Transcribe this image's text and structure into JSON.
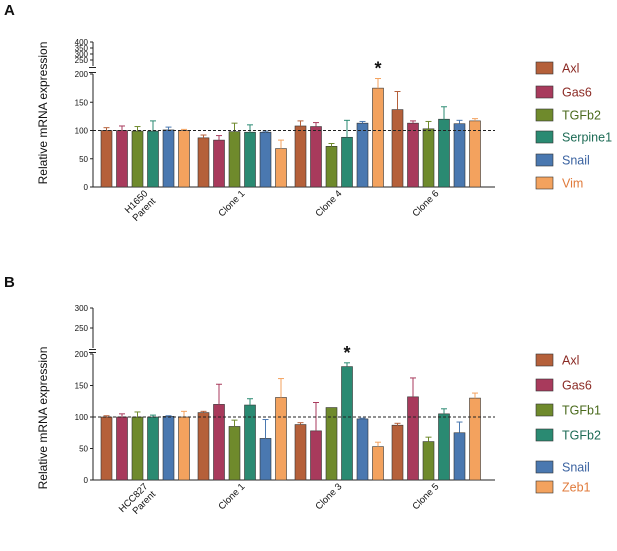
{
  "chart_data": [
    {
      "panel": "A",
      "type": "bar",
      "ylabel": "Relative mRNA expression",
      "categories": [
        [
          "H1650",
          "Parent"
        ],
        [
          "Clone 1"
        ],
        [
          "Clone 4"
        ],
        [
          "Clone 6"
        ]
      ],
      "yticks_lower": [
        "0",
        "50",
        "100",
        "150",
        "200"
      ],
      "yticks_upper": [
        "250",
        "300",
        "350",
        "400"
      ],
      "ylim_lower": [
        0,
        200
      ],
      "ylim_upper": [
        200,
        400
      ],
      "reference_line": 100,
      "significance": [
        {
          "category": 2,
          "series": 5,
          "label": "*"
        }
      ],
      "series": [
        {
          "name": "Axl",
          "color": "#b5603a",
          "label_color": "#8b2a24",
          "values": [
            100,
            87,
            108,
            137
          ],
          "errors": [
            5,
            5,
            9,
            32
          ]
        },
        {
          "name": "Gas6",
          "color": "#a83a5c",
          "label_color": "#8b2a24",
          "values": [
            100,
            83,
            107,
            113
          ],
          "errors": [
            8,
            8,
            7,
            4
          ]
        },
        {
          "name": "TGFb2",
          "color": "#6f8a2c",
          "label_color": "#4a6a1c",
          "values": [
            99,
            98,
            72,
            103
          ],
          "errors": [
            8,
            15,
            5,
            13
          ]
        },
        {
          "name": "Serpine1",
          "color": "#2a8a72",
          "label_color": "#1d6b55",
          "values": [
            99,
            97,
            88,
            120
          ],
          "errors": [
            18,
            13,
            30,
            22
          ]
        },
        {
          "name": "Snail",
          "color": "#4a78b0",
          "label_color": "#3a62a0",
          "values": [
            101,
            97,
            113,
            112
          ],
          "errors": [
            5,
            2,
            3,
            6
          ]
        },
        {
          "name": "Vim",
          "color": "#f3a25e",
          "label_color": "#e07a3a",
          "values": [
            100,
            68,
            175,
            117
          ],
          "errors": [
            2,
            15,
            17,
            4
          ]
        }
      ]
    },
    {
      "panel": "B",
      "type": "bar",
      "ylabel": "Relative mRNA expression",
      "categories": [
        [
          "HCC827",
          "Parent"
        ],
        [
          "Clone 1"
        ],
        [
          "Clone 3"
        ],
        [
          "Clone 5"
        ]
      ],
      "yticks_lower": [
        "0",
        "50",
        "100",
        "150",
        "200"
      ],
      "yticks_upper": [
        "250",
        "300"
      ],
      "ylim_lower": [
        0,
        200
      ],
      "ylim_upper": [
        200,
        300
      ],
      "reference_line": 100,
      "significance": [
        {
          "category": 2,
          "series": 3,
          "label": "*"
        }
      ],
      "series": [
        {
          "name": "Axl",
          "color": "#b5603a",
          "label_color": "#8b2a24",
          "values": [
            100,
            107,
            88,
            87
          ],
          "errors": [
            2,
            2,
            3,
            3
          ]
        },
        {
          "name": "Gas6",
          "color": "#a83a5c",
          "label_color": "#8b2a24",
          "values": [
            100,
            120,
            78,
            132
          ],
          "errors": [
            5,
            32,
            45,
            30
          ]
        },
        {
          "name": "TGFb1",
          "color": "#6f8a2c",
          "label_color": "#4a6a1c",
          "values": [
            100,
            85,
            115,
            61
          ],
          "errors": [
            8,
            10,
            0,
            7
          ]
        },
        {
          "name": "TGFb2",
          "color": "#2a8a72",
          "label_color": "#1d6b55",
          "values": [
            100,
            119,
            180,
            105
          ],
          "errors": [
            3,
            10,
            6,
            8
          ]
        },
        {
          "name": "Snail",
          "color": "#4a78b0",
          "label_color": "#3a62a0",
          "values": [
            101,
            66,
            97,
            75
          ],
          "errors": [
            1,
            30,
            1,
            17
          ]
        },
        {
          "name": "Zeb1",
          "color": "#f3a25e",
          "label_color": "#e07a3a",
          "values": [
            100,
            131,
            53,
            130
          ],
          "errors": [
            9,
            30,
            7,
            8
          ]
        }
      ]
    }
  ]
}
